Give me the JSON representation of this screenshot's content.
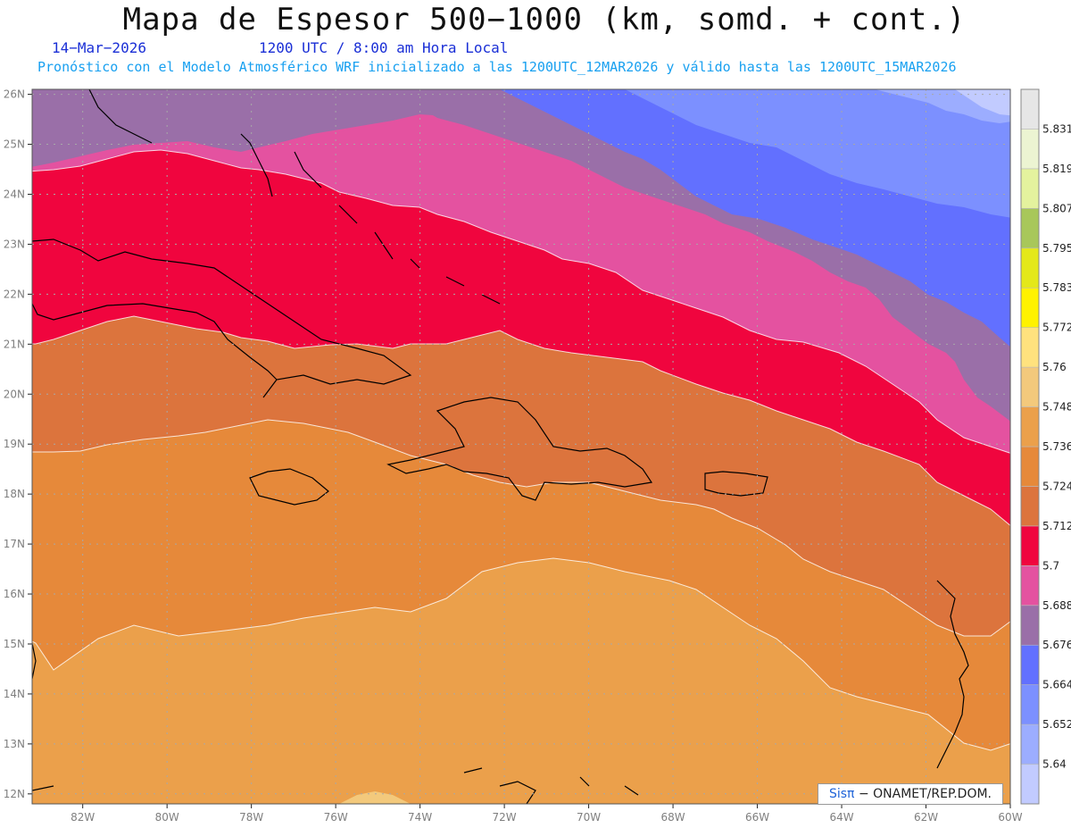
{
  "header": {
    "title": "Mapa de Espesor 500−1000 (km, somd. + cont.)",
    "date": "14−Mar−2026",
    "time": "1200 UTC / 8:00 am Hora Local",
    "forecast": "Pronóstico con el Modelo Atmosférico WRF inicializado a las 1200UTC_12MAR2026 y válido hasta las  1200UTC_15MAR2026"
  },
  "map": {
    "lon_range": [
      -83.2,
      -60
    ],
    "lat_range": [
      11.8,
      26.1
    ],
    "lon_ticks": [
      "82W",
      "80W",
      "78W",
      "76W",
      "74W",
      "72W",
      "70W",
      "68W",
      "66W",
      "64W",
      "62W",
      "60W"
    ],
    "lat_ticks": [
      "12N",
      "13N",
      "14N",
      "15N",
      "16N",
      "17N",
      "18N",
      "19N",
      "20N",
      "21N",
      "22N",
      "23N",
      "24N",
      "25N",
      "26N"
    ]
  },
  "colorbar": {
    "labels": [
      "5.64",
      "5.652",
      "5.664",
      "5.676",
      "5.688",
      "5.7",
      "5.712",
      "5.724",
      "5.736",
      "5.748",
      "5.76",
      "5.772",
      "5.783",
      "5.795",
      "5.807",
      "5.819",
      "5.831"
    ],
    "colors": [
      "#c2cbff",
      "#9cadff",
      "#7c90ff",
      "#6270ff",
      "#9a6fa8",
      "#e452a0",
      "#f0053e",
      "#dc743d",
      "#e6893a",
      "#eba04b",
      "#f3c97c",
      "#ffe27e",
      "#fff200",
      "#e4e81a",
      "#a8c75a",
      "#e4f29e",
      "#ecf4d2",
      "#e6e6e6"
    ]
  },
  "credit": {
    "logo": "Sisπ",
    "text": "− ONAMET/REP.DOM."
  }
}
